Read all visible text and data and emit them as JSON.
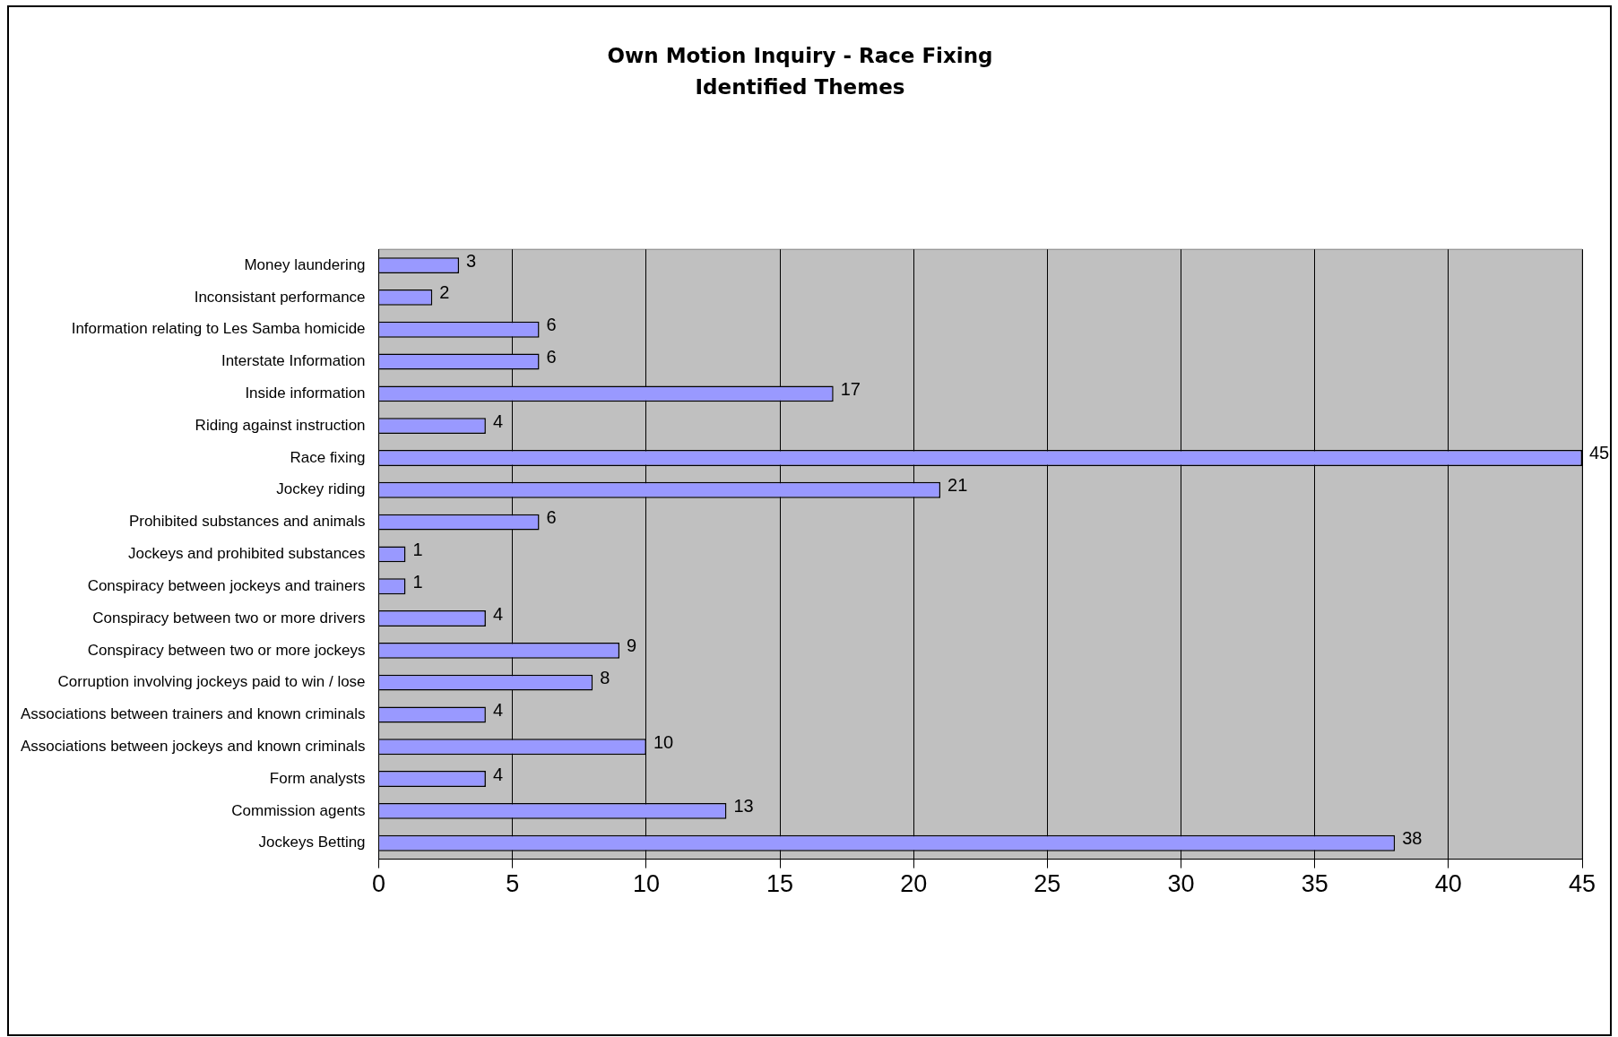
{
  "chart_data": {
    "type": "bar",
    "orientation": "horizontal",
    "title": "Own Motion Inquiry - Race Fixing",
    "subtitle": "Identified Themes",
    "categories": [
      "Money laundering",
      "Inconsistant performance",
      "Information relating to Les Samba homicide",
      "Interstate Information",
      "Inside information",
      "Riding against instruction",
      "Race fixing",
      "Jockey riding",
      "Prohibited substances and animals",
      "Jockeys and prohibited substances",
      "Conspiracy between jockeys and trainers",
      "Conspiracy between two or more drivers",
      "Conspiracy between two or more jockeys",
      "Corruption involving jockeys paid to win / lose",
      "Associations between trainers and known criminals",
      "Associations between jockeys and known criminals",
      "Form analysts",
      "Commission agents",
      "Jockeys Betting"
    ],
    "values": [
      3,
      2,
      6,
      6,
      17,
      4,
      45,
      21,
      6,
      1,
      1,
      4,
      9,
      8,
      4,
      10,
      4,
      13,
      38
    ],
    "color": "#9999ff",
    "xlim": [
      0,
      45
    ],
    "xticks": [
      0,
      5,
      10,
      15,
      20,
      25,
      30,
      35,
      40,
      45
    ],
    "grid": "x",
    "data_labels": true,
    "legend": false
  }
}
